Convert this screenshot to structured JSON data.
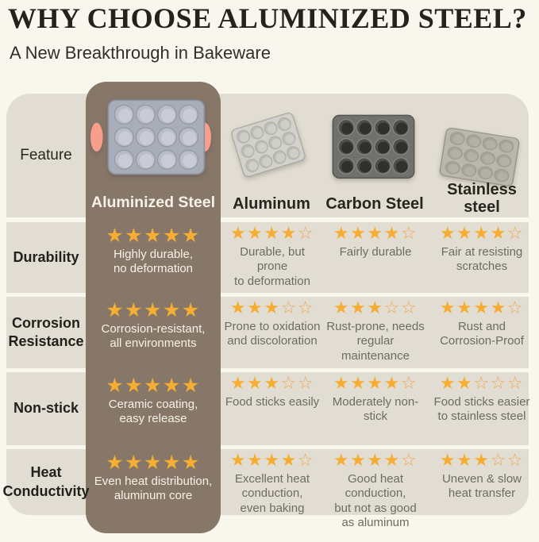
{
  "page": {
    "title": "WHY CHOOSE ALUMINIZED STEEL?",
    "subtitle": "A New Breakthrough in Bakeware"
  },
  "table": {
    "feature_header": "Feature",
    "columns": [
      {
        "name": "Aluminized Steel",
        "pan_icon": "aluminized-steel-muffin-pan",
        "highlighted": true
      },
      {
        "name": "Aluminum",
        "pan_icon": "aluminum-muffin-pan",
        "highlighted": false
      },
      {
        "name": "Carbon Steel",
        "pan_icon": "carbon-steel-muffin-pan",
        "highlighted": false
      },
      {
        "name": "Stainless\nsteel",
        "pan_icon": "stainless-steel-muffin-pan",
        "highlighted": false
      }
    ],
    "rows": [
      {
        "feature": "Durability",
        "cells": [
          {
            "stars": 5,
            "max_stars": 5,
            "text": "Highly durable,\nno deformation"
          },
          {
            "stars": 4,
            "max_stars": 5,
            "text": "Durable, but prone\nto deformation"
          },
          {
            "stars": 4,
            "max_stars": 5,
            "text": "Fairly durable"
          },
          {
            "stars": 4,
            "max_stars": 5,
            "text": "Fair at resisting\nscratches"
          }
        ]
      },
      {
        "feature": "Corrosion\nResistance",
        "cells": [
          {
            "stars": 5,
            "max_stars": 5,
            "text": "Corrosion-resistant,\nall environments"
          },
          {
            "stars": 3,
            "max_stars": 5,
            "text": "Prone to oxidation\nand discoloration"
          },
          {
            "stars": 3,
            "max_stars": 5,
            "text": "Rust-prone, needs\nregular maintenance"
          },
          {
            "stars": 4,
            "max_stars": 5,
            "text": "Rust and\nCorrosion-Proof"
          }
        ]
      },
      {
        "feature": "Non-stick",
        "cells": [
          {
            "stars": 5,
            "max_stars": 5,
            "text": "Ceramic coating,\neasy release"
          },
          {
            "stars": 3,
            "max_stars": 5,
            "text": "Food sticks easily"
          },
          {
            "stars": 4,
            "max_stars": 5,
            "text": "Moderately non-stick"
          },
          {
            "stars": 2,
            "max_stars": 5,
            "text": "Food sticks easier\nto stainless steel"
          }
        ]
      },
      {
        "feature": "Heat\nConductivity",
        "cells": [
          {
            "stars": 5,
            "max_stars": 5,
            "text": "Even heat distribution,\naluminum core"
          },
          {
            "stars": 4,
            "max_stars": 5,
            "text": "Excellent heat\nconduction,\neven baking"
          },
          {
            "stars": 4,
            "max_stars": 5,
            "text": "Good heat conduction,\nbut not as good\nas aluminum"
          },
          {
            "stars": 3,
            "max_stars": 5,
            "text": "Uneven & slow\nheat transfer"
          }
        ]
      }
    ]
  },
  "colors": {
    "page_bg": "#F8F6ED",
    "block_bg": "#E2DDD2",
    "highlight_bg": "#877769",
    "star_filled": "#F6AD33",
    "star_outline": "#EFA651",
    "handle_accent": "#F89E8B",
    "title_color": "#23221C",
    "text_dark": "#26261F",
    "text_gray": "#6E6B61",
    "text_light": "#F7F2E8"
  }
}
